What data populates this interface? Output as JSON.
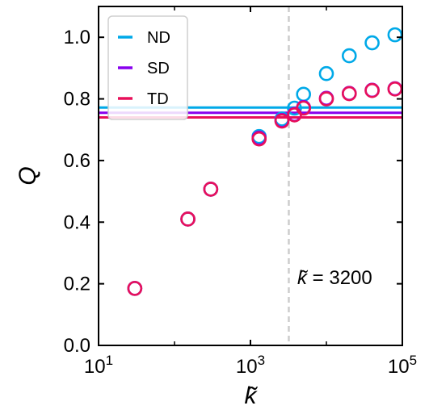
{
  "chart_data": {
    "type": "scatter",
    "x_scale": "log",
    "xlim": [
      10,
      100000
    ],
    "ylim": [
      0.0,
      1.1
    ],
    "xlabel": "k̃",
    "ylabel": "Q",
    "x_ticks": [
      {
        "value": 10,
        "base": "10",
        "exp": "1"
      },
      {
        "value": 1000,
        "base": "10",
        "exp": "3"
      },
      {
        "value": 100000,
        "base": "10",
        "exp": "5"
      }
    ],
    "y_ticks": [
      {
        "value": 0.0,
        "label": "0.0"
      },
      {
        "value": 0.2,
        "label": "0.2"
      },
      {
        "value": 0.4,
        "label": "0.4"
      },
      {
        "value": 0.6,
        "label": "0.6"
      },
      {
        "value": 0.8,
        "label": "0.8"
      },
      {
        "value": 1.0,
        "label": "1.0"
      }
    ],
    "legend": {
      "placement": "top-left",
      "entries": [
        "ND",
        "SD",
        "TD"
      ]
    },
    "series": [
      {
        "name": "ND",
        "color": "#00a9e8",
        "x": [
          30,
          150,
          300,
          1300,
          2600,
          3800,
          5000,
          10000,
          20000,
          40000,
          80000
        ],
        "y": [
          0.185,
          0.41,
          0.507,
          0.678,
          0.735,
          0.77,
          0.815,
          0.882,
          0.94,
          0.982,
          1.008
        ],
        "reference_line": 0.772
      },
      {
        "name": "SD",
        "color": "#8800ee",
        "x": [
          30,
          150,
          300,
          1300,
          2600,
          3800,
          5000,
          10000,
          20000,
          40000,
          80000
        ],
        "y": [
          0.185,
          0.41,
          0.507,
          0.673,
          0.73,
          0.75,
          0.772,
          0.802,
          0.818,
          0.828,
          0.833
        ],
        "reference_line": 0.755
      },
      {
        "name": "TD",
        "color": "#e8105a",
        "x": [
          30,
          150,
          300,
          1300,
          2600,
          3800,
          5000,
          10000,
          20000,
          40000,
          80000
        ],
        "y": [
          0.185,
          0.41,
          0.507,
          0.67,
          0.728,
          0.748,
          0.77,
          0.8,
          0.817,
          0.827,
          0.832
        ],
        "reference_line": 0.74
      }
    ],
    "vertical_line": {
      "x": 3200,
      "style": "dashed",
      "color": "#cccccc"
    },
    "annotation": {
      "prefix": "k̃",
      "text": " = 3200"
    }
  }
}
